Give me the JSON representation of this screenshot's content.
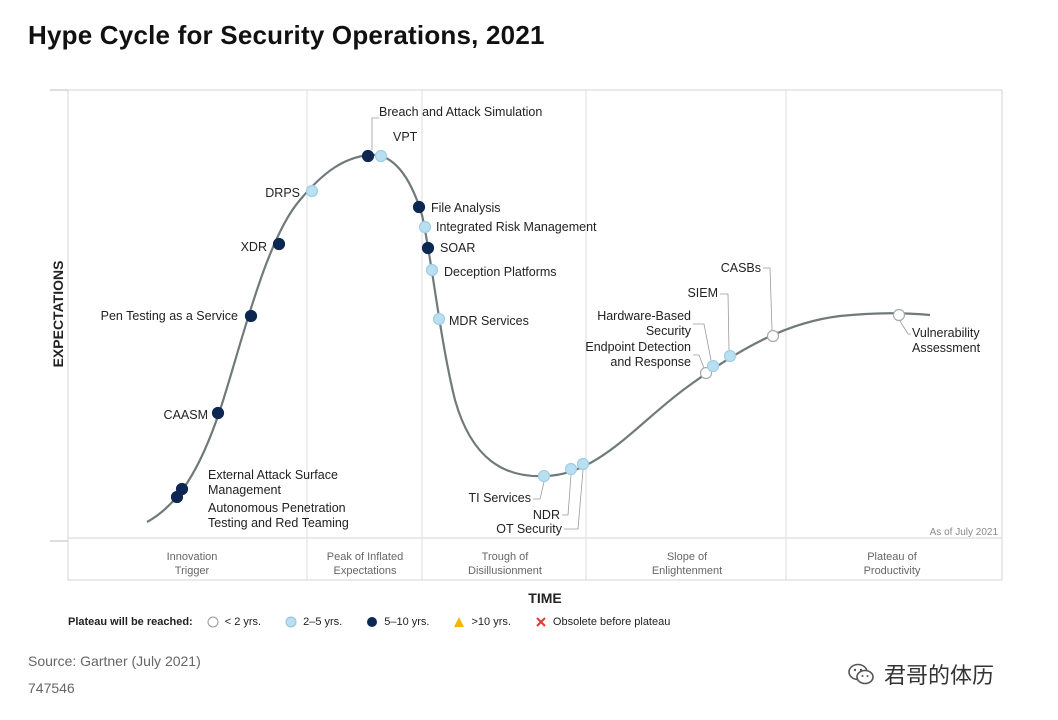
{
  "title": "Hype Cycle for Security Operations, 2021",
  "source": "Source: Gartner (July 2021)",
  "doc_id": "747546",
  "watermark": "君哥的体历",
  "colors": {
    "lt2": "#ffffff",
    "2to5": "#b9dff0",
    "5to10": "#0c2852",
    "gt10": "#f2b705",
    "obsolete": "#e53935",
    "curve": "#6f7a7a"
  },
  "chart_data": {
    "type": "hype-cycle",
    "ylabel": "EXPECTATIONS",
    "xlabel": "TIME",
    "as_of": "As of July 2021",
    "phases": [
      {
        "label": "Innovation\nTrigger"
      },
      {
        "label": "Peak of Inflated\nExpectations"
      },
      {
        "label": "Trough of\nDisillusionment"
      },
      {
        "label": "Slope of\nEnlightenment"
      },
      {
        "label": "Plateau of\nProductivity"
      }
    ],
    "legend": {
      "title": "Plateau will be reached:",
      "items": [
        {
          "key": "lt2",
          "label": "< 2 yrs."
        },
        {
          "key": "2to5",
          "label": "2–5 yrs."
        },
        {
          "key": "5to10",
          "label": "5–10 yrs."
        },
        {
          "key": "gt10",
          "label": ">10 yrs."
        },
        {
          "key": "obsolete",
          "label": "Obsolete before plateau"
        }
      ]
    },
    "points": [
      {
        "label": "Autonomous Penetration\nTesting and Red Teaming",
        "phase": "Innovation Trigger",
        "plateau": "5to10"
      },
      {
        "label": "External Attack Surface\nManagement",
        "phase": "Innovation Trigger",
        "plateau": "5to10"
      },
      {
        "label": "CAASM",
        "phase": "Innovation Trigger",
        "plateau": "5to10"
      },
      {
        "label": "Pen Testing as a Service",
        "phase": "Innovation Trigger",
        "plateau": "5to10"
      },
      {
        "label": "XDR",
        "phase": "Innovation Trigger",
        "plateau": "5to10"
      },
      {
        "label": "DRPS",
        "phase": "Peak of Inflated Expectations",
        "plateau": "2to5"
      },
      {
        "label": "Breach and Attack Simulation",
        "phase": "Peak of Inflated Expectations",
        "plateau": "5to10"
      },
      {
        "label": "VPT",
        "phase": "Peak of Inflated Expectations",
        "plateau": "2to5"
      },
      {
        "label": "File Analysis",
        "phase": "Trough of Disillusionment",
        "plateau": "5to10"
      },
      {
        "label": "Integrated Risk Management",
        "phase": "Trough of Disillusionment",
        "plateau": "2to5"
      },
      {
        "label": "SOAR",
        "phase": "Trough of Disillusionment",
        "plateau": "5to10"
      },
      {
        "label": "Deception Platforms",
        "phase": "Trough of Disillusionment",
        "plateau": "2to5"
      },
      {
        "label": "MDR Services",
        "phase": "Trough of Disillusionment",
        "plateau": "2to5"
      },
      {
        "label": "TI Services",
        "phase": "Trough of Disillusionment",
        "plateau": "2to5"
      },
      {
        "label": "NDR",
        "phase": "Trough of Disillusionment",
        "plateau": "2to5"
      },
      {
        "label": "OT Security",
        "phase": "Slope of Enlightenment",
        "plateau": "2to5"
      },
      {
        "label": "Endpoint Detection\nand Response",
        "phase": "Slope of Enlightenment",
        "plateau": "lt2"
      },
      {
        "label": "Hardware-Based\nSecurity",
        "phase": "Slope of Enlightenment",
        "plateau": "2to5"
      },
      {
        "label": "SIEM",
        "phase": "Slope of Enlightenment",
        "plateau": "2to5"
      },
      {
        "label": "CASBs",
        "phase": "Slope of Enlightenment",
        "plateau": "lt2"
      },
      {
        "label": "Vulnerability\nAssessment",
        "phase": "Plateau of Productivity",
        "plateau": "lt2"
      }
    ]
  }
}
